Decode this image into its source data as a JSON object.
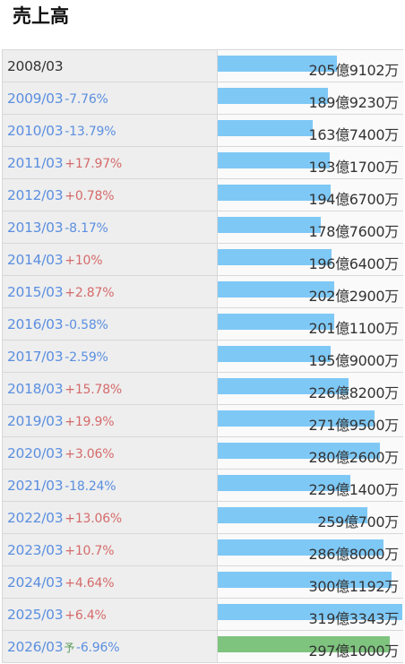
{
  "title": "売上高",
  "chart_data": {
    "type": "bar",
    "title": "売上高",
    "max_value": 319.3343,
    "rows": [
      {
        "period": "2008/03",
        "forecast": "",
        "change": "",
        "sign": "base",
        "value": 205.9102,
        "label": "205億9102万"
      },
      {
        "period": "2009/03",
        "forecast": "",
        "change": "-7.76%",
        "sign": "neg",
        "value": 189.923,
        "label": "189億9230万"
      },
      {
        "period": "2010/03",
        "forecast": "",
        "change": "-13.79%",
        "sign": "neg",
        "value": 163.74,
        "label": "163億7400万"
      },
      {
        "period": "2011/03",
        "forecast": "",
        "change": "+17.97%",
        "sign": "pos",
        "value": 193.17,
        "label": "193億1700万"
      },
      {
        "period": "2012/03",
        "forecast": "",
        "change": "+0.78%",
        "sign": "pos",
        "value": 194.67,
        "label": "194億6700万"
      },
      {
        "period": "2013/03",
        "forecast": "",
        "change": "-8.17%",
        "sign": "neg",
        "value": 178.76,
        "label": "178億7600万"
      },
      {
        "period": "2014/03",
        "forecast": "",
        "change": "+10%",
        "sign": "pos",
        "value": 196.64,
        "label": "196億6400万"
      },
      {
        "period": "2015/03",
        "forecast": "",
        "change": "+2.87%",
        "sign": "pos",
        "value": 202.29,
        "label": "202億2900万"
      },
      {
        "period": "2016/03",
        "forecast": "",
        "change": "-0.58%",
        "sign": "neg",
        "value": 201.11,
        "label": "201億1100万"
      },
      {
        "period": "2017/03",
        "forecast": "",
        "change": "-2.59%",
        "sign": "neg",
        "value": 195.9,
        "label": "195億9000万"
      },
      {
        "period": "2018/03",
        "forecast": "",
        "change": "+15.78%",
        "sign": "pos",
        "value": 226.82,
        "label": "226億8200万"
      },
      {
        "period": "2019/03",
        "forecast": "",
        "change": "+19.9%",
        "sign": "pos",
        "value": 271.95,
        "label": "271億9500万"
      },
      {
        "period": "2020/03",
        "forecast": "",
        "change": "+3.06%",
        "sign": "pos",
        "value": 280.26,
        "label": "280億2600万"
      },
      {
        "period": "2021/03",
        "forecast": "",
        "change": "-18.24%",
        "sign": "neg",
        "value": 229.14,
        "label": "229億1400万"
      },
      {
        "period": "2022/03",
        "forecast": "",
        "change": "+13.06%",
        "sign": "pos",
        "value": 259.07,
        "label": "259億700万"
      },
      {
        "period": "2023/03",
        "forecast": "",
        "change": "+10.7%",
        "sign": "pos",
        "value": 286.8,
        "label": "286億8000万"
      },
      {
        "period": "2024/03",
        "forecast": "",
        "change": "+4.64%",
        "sign": "pos",
        "value": 300.1192,
        "label": "300億1192万"
      },
      {
        "period": "2025/03",
        "forecast": "",
        "change": "+6.4%",
        "sign": "pos",
        "value": 319.3343,
        "label": "319億3343万"
      },
      {
        "period": "2026/03",
        "forecast": "予",
        "change": "-6.96%",
        "sign": "neg",
        "value": 297.1,
        "label": "297億1000万"
      }
    ]
  },
  "colors": {
    "bar": "#7ec8f6",
    "forecast_bar": "#7ec37e",
    "negative": "#5b8fe0",
    "positive": "#d56a6a"
  }
}
